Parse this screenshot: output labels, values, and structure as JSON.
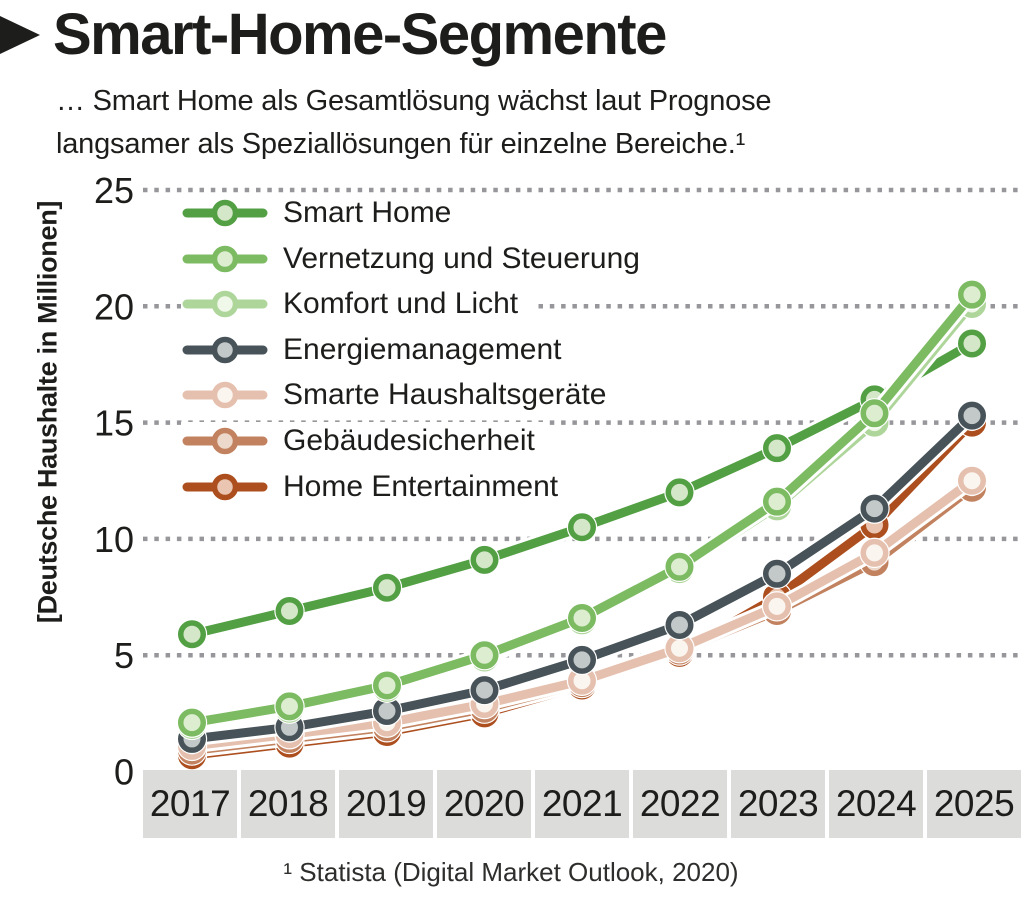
{
  "title": "Smart-Home-Segmente",
  "subtitle_lines": [
    "… Smart Home als Gesamtlösung wächst laut Prognose",
    "langsamer als Speziallösungen für einzelne Bereiche.¹"
  ],
  "footnote": "¹ Statista (Digital Market Outlook, 2020)",
  "y_axis_label": "[Deutsche Haushalte in Millionen]",
  "colors": {
    "text": "#1d1d1b",
    "gridline": "#97979b",
    "year_band": "#dcdcda",
    "line_casing": "#ffffff"
  },
  "chart_data": {
    "type": "line",
    "title": "Smart-Home-Segmente",
    "xlabel": "",
    "ylabel": "[Deutsche Haushalte in Millionen]",
    "categories": [
      "2017",
      "2018",
      "2019",
      "2020",
      "2021",
      "2022",
      "2023",
      "2024",
      "2025"
    ],
    "ylim": [
      0,
      25
    ],
    "yticks": [
      0,
      5,
      10,
      15,
      20,
      25
    ],
    "grid": "horizontal-dotted",
    "legend_position": "top-left-overlay",
    "series": [
      {
        "name": "Smart Home",
        "color": "#53a044",
        "marker_fill": "#d4e8c9",
        "values": [
          5.9,
          6.9,
          7.9,
          9.1,
          10.5,
          12.0,
          13.9,
          16.0,
          18.4
        ]
      },
      {
        "name": "Vernetzung und Steuerung",
        "color": "#7cbb62",
        "marker_fill": "#dcedd0",
        "values": [
          2.1,
          2.8,
          3.7,
          5.0,
          6.6,
          8.8,
          11.6,
          15.4,
          20.5
        ]
      },
      {
        "name": "Komfort und Licht",
        "color": "#aed69b",
        "marker_fill": "#f0f8ea",
        "values": [
          2.0,
          2.7,
          3.6,
          4.9,
          6.5,
          8.7,
          11.4,
          15.0,
          20.1
        ]
      },
      {
        "name": "Energiemanagement",
        "color": "#475358",
        "marker_fill": "#c3c8c8",
        "values": [
          1.4,
          1.9,
          2.6,
          3.5,
          4.8,
          6.3,
          8.5,
          11.3,
          15.3
        ]
      },
      {
        "name": "Smarte Haushaltsgeräte",
        "color": "#e5c0ae",
        "marker_fill": "#fbf5f0",
        "values": [
          1.1,
          1.6,
          2.1,
          2.9,
          3.9,
          5.3,
          7.1,
          9.4,
          12.5
        ]
      },
      {
        "name": "Gebäudesicherheit",
        "color": "#c2825f",
        "marker_fill": "#edd9cb",
        "values": [
          0.9,
          1.4,
          1.9,
          2.7,
          3.8,
          5.2,
          6.9,
          9.0,
          12.2
        ]
      },
      {
        "name": "Home Entertainment",
        "color": "#ac4e1e",
        "marker_fill": "#eac5b1",
        "values": [
          0.7,
          1.2,
          1.7,
          2.5,
          3.7,
          5.1,
          7.5,
          10.6,
          15.0
        ]
      }
    ],
    "draw_order": [
      0,
      6,
      5,
      4,
      3,
      2,
      1
    ]
  }
}
